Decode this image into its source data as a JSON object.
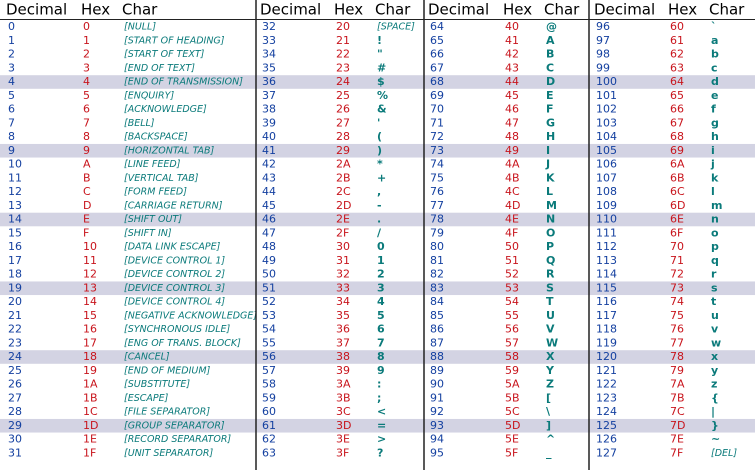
{
  "groups": [
    {
      "headers": [
        "Decimal",
        "Hex",
        "Char"
      ],
      "rows": [
        [
          "0",
          "0",
          "[NULL]"
        ],
        [
          "1",
          "1",
          "[START OF HEADING]"
        ],
        [
          "2",
          "2",
          "[START OF TEXT]"
        ],
        [
          "3",
          "3",
          "[END OF TEXT]"
        ],
        [
          "4",
          "4",
          "[END OF TRANSMISSION]"
        ],
        [
          "5",
          "5",
          "[ENQUIRY]"
        ],
        [
          "6",
          "6",
          "[ACKNOWLEDGE]"
        ],
        [
          "7",
          "7",
          "[BELL]"
        ],
        [
          "8",
          "8",
          "[BACKSPACE]"
        ],
        [
          "9",
          "9",
          "[HORIZONTAL TAB]"
        ],
        [
          "10",
          "A",
          "[LINE FEED]"
        ],
        [
          "11",
          "B",
          "[VERTICAL TAB]"
        ],
        [
          "12",
          "C",
          "[FORM FEED]"
        ],
        [
          "13",
          "D",
          "[CARRIAGE RETURN]"
        ],
        [
          "14",
          "E",
          "[SHIFT OUT]"
        ],
        [
          "15",
          "F",
          "[SHIFT IN]"
        ],
        [
          "16",
          "10",
          "[DATA LINK ESCAPE]"
        ],
        [
          "17",
          "11",
          "[DEVICE CONTROL 1]"
        ],
        [
          "18",
          "12",
          "[DEVICE CONTROL 2]"
        ],
        [
          "19",
          "13",
          "[DEVICE CONTROL 3]"
        ],
        [
          "20",
          "14",
          "[DEVICE CONTROL 4]"
        ],
        [
          "21",
          "15",
          "[NEGATIVE ACKNOWLEDGE]"
        ],
        [
          "22",
          "16",
          "[SYNCHRONOUS IDLE]"
        ],
        [
          "23",
          "17",
          "[ENG OF TRANS. BLOCK]"
        ],
        [
          "24",
          "18",
          "[CANCEL]"
        ],
        [
          "25",
          "19",
          "[END OF MEDIUM]"
        ],
        [
          "26",
          "1A",
          "[SUBSTITUTE]"
        ],
        [
          "27",
          "1B",
          "[ESCAPE]"
        ],
        [
          "28",
          "1C",
          "[FILE SEPARATOR]"
        ],
        [
          "29",
          "1D",
          "[GROUP SEPARATOR]"
        ],
        [
          "30",
          "1E",
          "[RECORD SEPARATOR]"
        ],
        [
          "31",
          "1F",
          "[UNIT SEPARATOR]"
        ]
      ]
    },
    {
      "headers": [
        "Decimal",
        "Hex",
        "Char"
      ],
      "rows": [
        [
          "32",
          "20",
          "[SPACE]"
        ],
        [
          "33",
          "21",
          "!"
        ],
        [
          "34",
          "22",
          "\""
        ],
        [
          "35",
          "23",
          "#"
        ],
        [
          "36",
          "24",
          "$"
        ],
        [
          "37",
          "25",
          "%"
        ],
        [
          "38",
          "26",
          "&"
        ],
        [
          "39",
          "27",
          "'"
        ],
        [
          "40",
          "28",
          "("
        ],
        [
          "41",
          "29",
          ")"
        ],
        [
          "42",
          "2A",
          "*"
        ],
        [
          "43",
          "2B",
          "+"
        ],
        [
          "44",
          "2C",
          ","
        ],
        [
          "45",
          "2D",
          "-"
        ],
        [
          "46",
          "2E",
          "."
        ],
        [
          "47",
          "2F",
          "/"
        ],
        [
          "48",
          "30",
          "0"
        ],
        [
          "49",
          "31",
          "1"
        ],
        [
          "50",
          "32",
          "2"
        ],
        [
          "51",
          "33",
          "3"
        ],
        [
          "52",
          "34",
          "4"
        ],
        [
          "53",
          "35",
          "5"
        ],
        [
          "54",
          "36",
          "6"
        ],
        [
          "55",
          "37",
          "7"
        ],
        [
          "56",
          "38",
          "8"
        ],
        [
          "57",
          "39",
          "9"
        ],
        [
          "58",
          "3A",
          ":"
        ],
        [
          "59",
          "3B",
          ";"
        ],
        [
          "60",
          "3C",
          "<"
        ],
        [
          "61",
          "3D",
          "="
        ],
        [
          "62",
          "3E",
          ">"
        ],
        [
          "63",
          "3F",
          "?"
        ]
      ]
    },
    {
      "headers": [
        "Decimal",
        "Hex",
        "Char"
      ],
      "rows": [
        [
          "64",
          "40",
          "@"
        ],
        [
          "65",
          "41",
          "A"
        ],
        [
          "66",
          "42",
          "B"
        ],
        [
          "67",
          "43",
          "C"
        ],
        [
          "68",
          "44",
          "D"
        ],
        [
          "69",
          "45",
          "E"
        ],
        [
          "70",
          "46",
          "F"
        ],
        [
          "71",
          "47",
          "G"
        ],
        [
          "72",
          "48",
          "H"
        ],
        [
          "73",
          "49",
          "I"
        ],
        [
          "74",
          "4A",
          "J"
        ],
        [
          "75",
          "4B",
          "K"
        ],
        [
          "76",
          "4C",
          "L"
        ],
        [
          "77",
          "4D",
          "M"
        ],
        [
          "78",
          "4E",
          "N"
        ],
        [
          "79",
          "4F",
          "O"
        ],
        [
          "80",
          "50",
          "P"
        ],
        [
          "81",
          "51",
          "Q"
        ],
        [
          "82",
          "52",
          "R"
        ],
        [
          "83",
          "53",
          "S"
        ],
        [
          "84",
          "54",
          "T"
        ],
        [
          "85",
          "55",
          "U"
        ],
        [
          "86",
          "56",
          "V"
        ],
        [
          "87",
          "57",
          "W"
        ],
        [
          "88",
          "58",
          "X"
        ],
        [
          "89",
          "59",
          "Y"
        ],
        [
          "90",
          "5A",
          "Z"
        ],
        [
          "91",
          "5B",
          "["
        ],
        [
          "92",
          "5C",
          "\\"
        ],
        [
          "93",
          "5D",
          "]"
        ],
        [
          "94",
          "5E",
          "^"
        ],
        [
          "95",
          "5F",
          "_"
        ]
      ]
    },
    {
      "headers": [
        "Decimal",
        "Hex",
        "Char"
      ],
      "rows": [
        [
          "96",
          "60",
          "`"
        ],
        [
          "97",
          "61",
          "a"
        ],
        [
          "98",
          "62",
          "b"
        ],
        [
          "99",
          "63",
          "c"
        ],
        [
          "100",
          "64",
          "d"
        ],
        [
          "101",
          "65",
          "e"
        ],
        [
          "102",
          "66",
          "f"
        ],
        [
          "103",
          "67",
          "g"
        ],
        [
          "104",
          "68",
          "h"
        ],
        [
          "105",
          "69",
          "i"
        ],
        [
          "106",
          "6A",
          "j"
        ],
        [
          "107",
          "6B",
          "k"
        ],
        [
          "108",
          "6C",
          "l"
        ],
        [
          "109",
          "6D",
          "m"
        ],
        [
          "110",
          "6E",
          "n"
        ],
        [
          "111",
          "6F",
          "o"
        ],
        [
          "112",
          "70",
          "p"
        ],
        [
          "113",
          "71",
          "q"
        ],
        [
          "114",
          "72",
          "r"
        ],
        [
          "115",
          "73",
          "s"
        ],
        [
          "116",
          "74",
          "t"
        ],
        [
          "117",
          "75",
          "u"
        ],
        [
          "118",
          "76",
          "v"
        ],
        [
          "119",
          "77",
          "w"
        ],
        [
          "120",
          "78",
          "x"
        ],
        [
          "121",
          "79",
          "y"
        ],
        [
          "122",
          "7A",
          "z"
        ],
        [
          "123",
          "7B",
          "{"
        ],
        [
          "124",
          "7C",
          "|"
        ],
        [
          "125",
          "7D",
          "}"
        ],
        [
          "126",
          "7E",
          "~"
        ],
        [
          "127",
          "7F",
          "[DEL]"
        ]
      ]
    }
  ]
}
